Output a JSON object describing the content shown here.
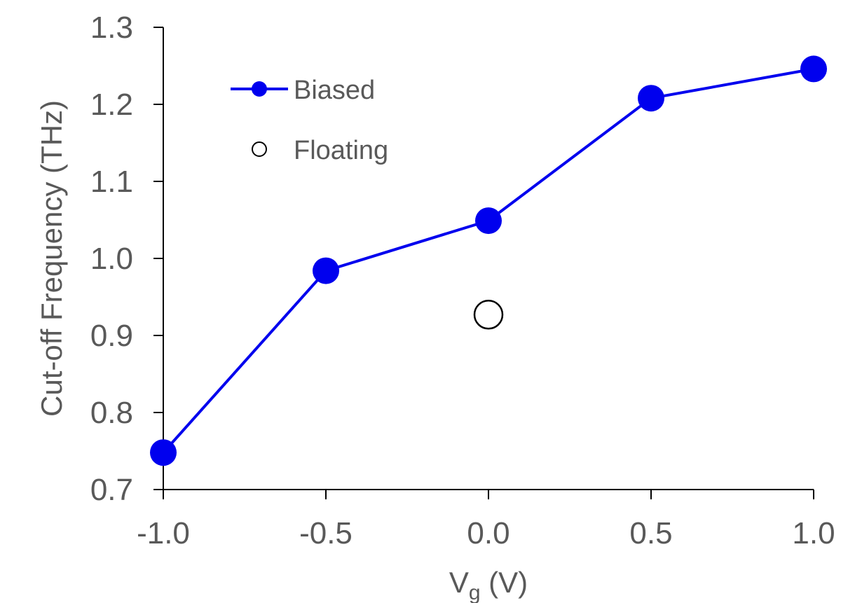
{
  "chart_data": {
    "type": "line",
    "xlabel": "V",
    "xlabel_sub": "g",
    "xlabel_unit": " (V)",
    "ylabel": "Cut-off Frequency  (THz)",
    "xlim": [
      -1.0,
      1.0
    ],
    "ylim": [
      0.7,
      1.3
    ],
    "xticks": [
      -1.0,
      -0.5,
      0.0,
      0.5,
      1.0
    ],
    "xtick_labels": [
      "-1.0",
      "-0.5",
      "0.0",
      "0.5",
      "1.0"
    ],
    "yticks": [
      0.7,
      0.8,
      0.9,
      1.0,
      1.1,
      1.2,
      1.3
    ],
    "ytick_labels": [
      "0.7",
      "0.8",
      "0.9",
      "1.0",
      "1.1",
      "1.2",
      "1.3"
    ],
    "grid": false,
    "legend_position": "top-left",
    "series": [
      {
        "name": "Biased",
        "marker": "filled-circle",
        "line": true,
        "color": "#0000ee",
        "x": [
          -1.0,
          -0.5,
          0.0,
          0.5,
          1.0
        ],
        "y": [
          0.748,
          0.984,
          1.049,
          1.208,
          1.246
        ]
      },
      {
        "name": "Floating",
        "marker": "open-circle",
        "line": false,
        "color": "#000000",
        "x": [
          0.0
        ],
        "y": [
          0.927
        ]
      }
    ]
  }
}
